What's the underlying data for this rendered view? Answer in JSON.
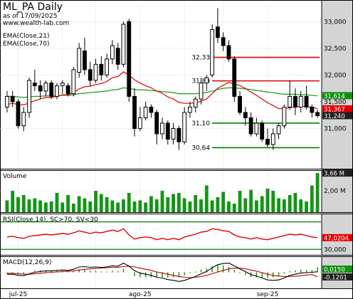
{
  "header": {
    "title": "ML_PA Daily",
    "subtitle": "as of 17/09/2025",
    "source": "www.wealth-lab.com"
  },
  "colors": {
    "up": "#ffffff",
    "down": "#000000",
    "ema21": "#e00000",
    "ema70": "#1a9a1a",
    "hline": "#e00000",
    "hline_green": "#008000",
    "volume": "#139613",
    "rsi": "#e00000",
    "macd_line": "#000000",
    "macd_signal": "#c00000",
    "macd_hist": "#119011",
    "axis_bg": "#d4d4d4",
    "tag_ema21": "#119011",
    "tag_ema70": "#e00000",
    "tag_last": "#202020"
  },
  "chart_data": {
    "type": "candlestick",
    "x_tick_labels": [
      {
        "index": 2,
        "label": "jul-25"
      },
      {
        "index": 24,
        "label": "ago-25"
      },
      {
        "index": 47,
        "label": "sep-25"
      }
    ],
    "price": {
      "ylim": [
        30.3,
        33.35
      ],
      "ticks": [
        31.0,
        31.5,
        32.0,
        32.5,
        33.0
      ],
      "tick_labels": [
        "31,000",
        "31,500",
        "32,000",
        "32,500",
        "33,000"
      ],
      "candles": [
        [
          31.4,
          31.7,
          31.3,
          31.6
        ],
        [
          31.6,
          31.7,
          31.4,
          31.5
        ],
        [
          31.5,
          31.55,
          31.0,
          31.05
        ],
        [
          31.05,
          31.4,
          30.95,
          31.3
        ],
        [
          31.3,
          31.95,
          31.2,
          31.9
        ],
        [
          31.85,
          32.1,
          31.7,
          31.8
        ],
        [
          31.8,
          31.9,
          31.55,
          31.7
        ],
        [
          31.7,
          31.9,
          31.6,
          31.85
        ],
        [
          31.85,
          31.9,
          31.55,
          31.6
        ],
        [
          31.6,
          31.85,
          31.55,
          31.8
        ],
        [
          31.8,
          31.9,
          31.65,
          31.85
        ],
        [
          31.8,
          31.85,
          31.6,
          31.65
        ],
        [
          31.65,
          32.15,
          31.6,
          32.1
        ],
        [
          32.05,
          32.6,
          31.95,
          32.5
        ],
        [
          32.45,
          32.7,
          32.0,
          32.1
        ],
        [
          32.1,
          32.25,
          31.8,
          31.9
        ],
        [
          31.9,
          32.3,
          31.85,
          32.2
        ],
        [
          32.2,
          32.35,
          31.9,
          32.0
        ],
        [
          32.0,
          32.4,
          31.95,
          32.3
        ],
        [
          32.3,
          32.65,
          32.2,
          32.55
        ],
        [
          32.5,
          32.6,
          32.1,
          32.2
        ],
        [
          32.2,
          33.0,
          32.15,
          32.95
        ],
        [
          33.0,
          33.05,
          31.5,
          31.6
        ],
        [
          31.6,
          31.75,
          30.85,
          31.0
        ],
        [
          31.0,
          31.4,
          30.95,
          31.2
        ],
        [
          31.2,
          31.5,
          31.15,
          31.4
        ],
        [
          31.4,
          31.45,
          31.2,
          31.3
        ],
        [
          31.3,
          31.35,
          30.7,
          30.9
        ],
        [
          30.9,
          31.2,
          30.8,
          31.1
        ],
        [
          31.1,
          31.15,
          30.7,
          30.8
        ],
        [
          30.8,
          31.1,
          30.7,
          31.0
        ],
        [
          31.0,
          31.05,
          30.6,
          30.75
        ],
        [
          30.75,
          31.4,
          30.7,
          31.3
        ],
        [
          31.3,
          31.5,
          31.2,
          31.4
        ],
        [
          31.4,
          31.6,
          31.3,
          31.55
        ],
        [
          31.55,
          31.95,
          31.45,
          31.85
        ],
        [
          31.85,
          32.0,
          31.7,
          31.95
        ],
        [
          32.0,
          32.95,
          31.95,
          32.85
        ],
        [
          32.9,
          33.25,
          32.6,
          32.7
        ],
        [
          32.7,
          32.8,
          32.45,
          32.55
        ],
        [
          32.55,
          32.65,
          32.25,
          32.3
        ],
        [
          32.3,
          32.35,
          31.5,
          31.6
        ],
        [
          31.6,
          31.7,
          31.25,
          31.3
        ],
        [
          31.3,
          31.4,
          31.05,
          31.2
        ],
        [
          31.2,
          31.3,
          30.85,
          30.9
        ],
        [
          30.9,
          31.2,
          30.85,
          31.1
        ],
        [
          31.1,
          31.15,
          30.75,
          30.8
        ],
        [
          30.8,
          31.0,
          30.65,
          30.7
        ],
        [
          30.7,
          31.0,
          30.6,
          30.9
        ],
        [
          30.9,
          31.1,
          30.8,
          31.05
        ],
        [
          31.05,
          31.45,
          31.0,
          31.4
        ],
        [
          31.4,
          31.9,
          31.35,
          31.6
        ],
        [
          31.6,
          31.75,
          31.25,
          31.4
        ],
        [
          31.4,
          31.7,
          31.3,
          31.6
        ],
        [
          31.6,
          31.8,
          31.35,
          31.4
        ],
        [
          31.4,
          31.45,
          31.2,
          31.3
        ],
        [
          31.3,
          31.35,
          31.2,
          31.24
        ]
      ],
      "ema21": [
        31.45,
        31.47,
        31.45,
        31.44,
        31.48,
        31.52,
        31.55,
        31.58,
        31.58,
        31.6,
        31.63,
        31.63,
        31.67,
        31.74,
        31.78,
        31.79,
        31.82,
        31.84,
        31.88,
        31.95,
        31.97,
        32.06,
        32.0,
        31.91,
        31.85,
        31.8,
        31.76,
        31.7,
        31.66,
        31.59,
        31.55,
        31.49,
        31.47,
        31.47,
        31.48,
        31.51,
        31.55,
        31.65,
        31.75,
        31.81,
        31.86,
        31.84,
        31.8,
        31.75,
        31.68,
        31.62,
        31.55,
        31.48,
        31.43,
        31.37,
        31.37,
        31.39,
        31.4,
        31.41,
        31.41,
        31.4,
        31.37
      ],
      "ema70": [
        31.6,
        31.6,
        31.59,
        31.58,
        31.59,
        31.6,
        31.6,
        31.61,
        31.61,
        31.61,
        31.62,
        31.62,
        31.63,
        31.65,
        31.66,
        31.67,
        31.68,
        31.69,
        31.7,
        31.72,
        31.73,
        31.76,
        31.75,
        31.73,
        31.72,
        31.72,
        31.71,
        31.7,
        31.69,
        31.68,
        31.67,
        31.65,
        31.65,
        31.65,
        31.65,
        31.66,
        31.67,
        31.7,
        31.73,
        31.75,
        31.76,
        31.76,
        31.75,
        31.74,
        31.73,
        31.71,
        31.7,
        31.68,
        31.67,
        31.65,
        31.64,
        31.64,
        31.64,
        31.63,
        31.63,
        31.62,
        31.61
      ],
      "hlines": [
        {
          "label": "32,33",
          "value": 32.33,
          "start": 37,
          "color": "red"
        },
        {
          "label": "31,89",
          "value": 31.89,
          "start": 37,
          "color": "red"
        },
        {
          "label": "31,10",
          "value": 31.1,
          "start": 37,
          "color": "green"
        },
        {
          "label": "30,64",
          "value": 30.64,
          "start": 37,
          "color": "green"
        }
      ],
      "last_tags": [
        {
          "label": "31,614",
          "value": 31.614,
          "color": "tag_ema21"
        },
        {
          "label": "31,367",
          "value": 31.367,
          "color": "tag_ema70"
        },
        {
          "label": "31,240",
          "value": 31.24,
          "color": "tag_last"
        }
      ]
    },
    "volume": {
      "title": "Volume",
      "ylim": [
        0,
        3.8
      ],
      "ticks": [
        2.0
      ],
      "tick_labels": [
        "2,00 M"
      ],
      "last_tag": "3,66 M",
      "values": [
        1.1,
        2.0,
        1.4,
        1.6,
        1.2,
        1.3,
        1.1,
        0.9,
        1.0,
        1.8,
        0.9,
        1.6,
        0.8,
        1.5,
        1.3,
        1.0,
        2.0,
        1.7,
        1.4,
        1.1,
        0.9,
        1.2,
        1.8,
        1.0,
        1.1,
        0.9,
        1.5,
        1.2,
        2.0,
        1.4,
        1.7,
        1.8,
        1.3,
        1.0,
        1.6,
        1.2,
        2.5,
        1.1,
        1.4,
        1.9,
        1.0,
        0.8,
        2.0,
        1.3,
        2.1,
        1.1,
        1.5,
        2.2,
        2.0,
        1.3,
        1.2,
        1.6,
        1.8,
        1.2,
        1.0,
        2.5,
        3.66
      ]
    },
    "rsi": {
      "title": "RSI(Close,14), SC>70, SV<30",
      "ylim": [
        22,
        82
      ],
      "bands": [
        30,
        70
      ],
      "tick_labels": [
        "30,000"
      ],
      "last_tag": "47,0204",
      "values": [
        48,
        49,
        47,
        46,
        49,
        50,
        51,
        52,
        51,
        52,
        53,
        52,
        54,
        57,
        55,
        53,
        55,
        54,
        56,
        58,
        56,
        60,
        51,
        45,
        47,
        48,
        47,
        44,
        46,
        44,
        46,
        44,
        48,
        50,
        52,
        55,
        56,
        60,
        59,
        57,
        56,
        51,
        48,
        47,
        45,
        47,
        45,
        44,
        46,
        48,
        50,
        52,
        51,
        52,
        50,
        48,
        47
      ]
    },
    "macd": {
      "title": "MACD(12,26,9)",
      "ylim": [
        -0.42,
        0.42
      ],
      "last_tag_macd": "0,0150",
      "last_tag_signal": "-0,1201",
      "macd": [
        -0.05,
        -0.05,
        -0.08,
        -0.09,
        -0.04,
        0.0,
        0.02,
        0.04,
        0.04,
        0.05,
        0.06,
        0.05,
        0.08,
        0.14,
        0.15,
        0.13,
        0.14,
        0.13,
        0.14,
        0.17,
        0.16,
        0.24,
        0.16,
        0.04,
        -0.02,
        -0.05,
        -0.08,
        -0.13,
        -0.15,
        -0.19,
        -0.21,
        -0.24,
        -0.21,
        -0.16,
        -0.11,
        -0.04,
        0.02,
        0.12,
        0.2,
        0.23,
        0.24,
        0.17,
        0.09,
        0.02,
        -0.06,
        -0.1,
        -0.15,
        -0.2,
        -0.21,
        -0.2,
        -0.15,
        -0.08,
        -0.05,
        -0.02,
        -0.01,
        0.0,
        0.015
      ],
      "signal": [
        -0.03,
        -0.03,
        -0.04,
        -0.05,
        -0.05,
        -0.04,
        -0.03,
        -0.01,
        0.0,
        0.01,
        0.02,
        0.03,
        0.04,
        0.06,
        0.08,
        0.09,
        0.1,
        0.11,
        0.12,
        0.13,
        0.13,
        0.15,
        0.16,
        0.14,
        0.11,
        0.08,
        0.05,
        0.01,
        -0.02,
        -0.05,
        -0.08,
        -0.11,
        -0.13,
        -0.14,
        -0.13,
        -0.11,
        -0.08,
        -0.04,
        0.01,
        0.05,
        0.09,
        0.11,
        0.11,
        0.09,
        0.06,
        0.03,
        -0.01,
        -0.05,
        -0.08,
        -0.1,
        -0.11,
        -0.11,
        -0.1,
        -0.09,
        -0.07,
        -0.06,
        -0.12
      ]
    }
  }
}
